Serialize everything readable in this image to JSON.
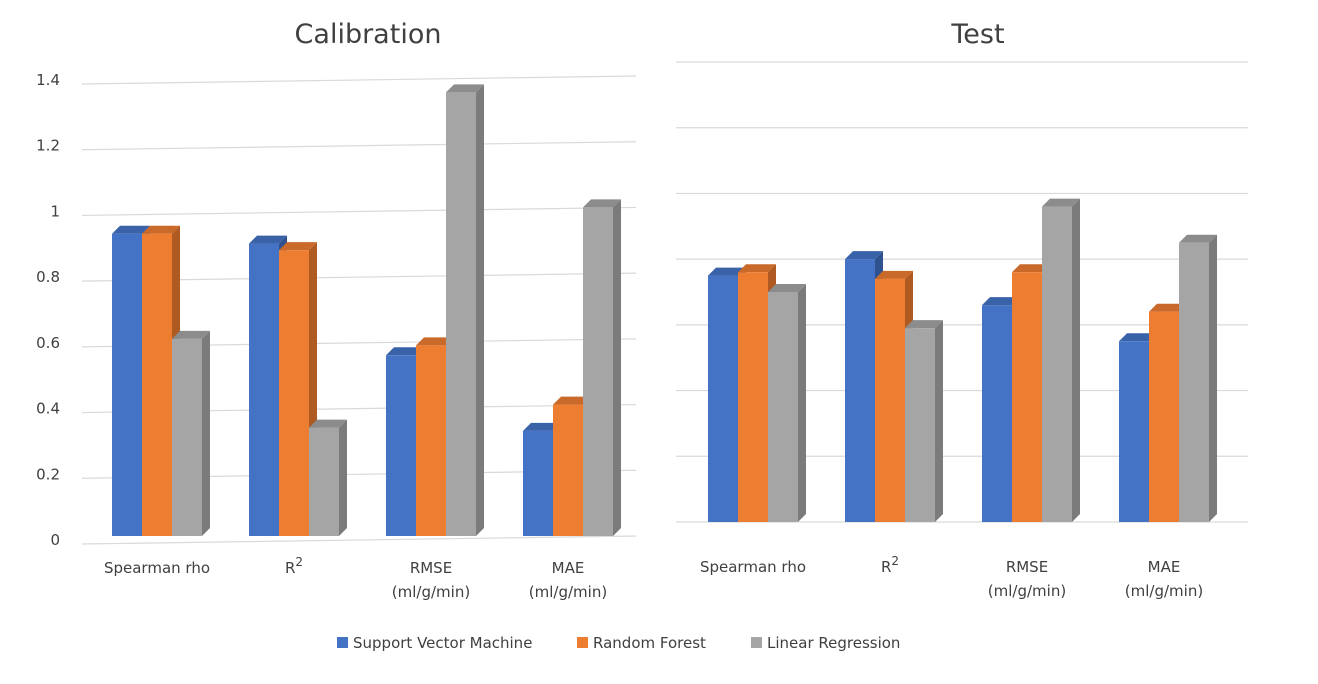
{
  "chart_data": [
    {
      "type": "bar",
      "title": "Calibration",
      "categories": [
        "Spearman rho",
        "R2",
        "RMSE (ml/g/min)",
        "MAE (ml/g/min)"
      ],
      "category_labels": [
        {
          "line1": "Spearman rho",
          "line2": ""
        },
        {
          "line1": "R",
          "sup": "2",
          "line2": ""
        },
        {
          "line1": "RMSE",
          "line2": "(ml/g/min)"
        },
        {
          "line1": "MAE",
          "line2": "(ml/g/min)"
        }
      ],
      "series": [
        {
          "name": "Support Vector Machine",
          "values": [
            0.92,
            0.89,
            0.55,
            0.32
          ]
        },
        {
          "name": "Random Forest",
          "values": [
            0.92,
            0.87,
            0.58,
            0.4
          ]
        },
        {
          "name": "Linear Regression",
          "values": [
            0.6,
            0.33,
            1.35,
            1.0
          ]
        }
      ],
      "ylim": [
        0,
        1.4
      ],
      "yticks": [
        "0",
        "0.2",
        "0.4",
        "0.6",
        "0.8",
        "1",
        "1.2",
        "1.4"
      ],
      "grid": true
    },
    {
      "type": "bar",
      "title": "Test",
      "categories": [
        "Spearman rho",
        "R2",
        "RMSE (ml/g/min)",
        "MAE (ml/g/min)"
      ],
      "category_labels": [
        {
          "line1": "Spearman rho",
          "line2": ""
        },
        {
          "line1": "R",
          "sup": "2",
          "line2": ""
        },
        {
          "line1": "RMSE",
          "line2": "(ml/g/min)"
        },
        {
          "line1": "MAE",
          "line2": "(ml/g/min)"
        }
      ],
      "series": [
        {
          "name": "Support Vector Machine",
          "values": [
            0.75,
            0.8,
            0.66,
            0.55
          ]
        },
        {
          "name": "Random Forest",
          "values": [
            0.76,
            0.74,
            0.76,
            0.64
          ]
        },
        {
          "name": "Linear Regression",
          "values": [
            0.7,
            0.59,
            0.96,
            0.85
          ]
        }
      ],
      "ylim": [
        0,
        1.4
      ],
      "grid": true
    }
  ],
  "legend": {
    "position": "bottom",
    "items": [
      {
        "name": "Support Vector Machine",
        "color": "#4472c4"
      },
      {
        "name": "Random Forest",
        "color": "#ed7d31"
      },
      {
        "name": "Linear Regression",
        "color": "#a5a5a5"
      }
    ]
  },
  "colors": {
    "series_front": [
      "#4472c4",
      "#ed7d31",
      "#a5a5a5"
    ],
    "series_side": [
      "#2f528f",
      "#ae5a21",
      "#7b7b7b"
    ],
    "series_top": [
      "#3a62a8",
      "#c9692a",
      "#8c8c8c"
    ]
  }
}
